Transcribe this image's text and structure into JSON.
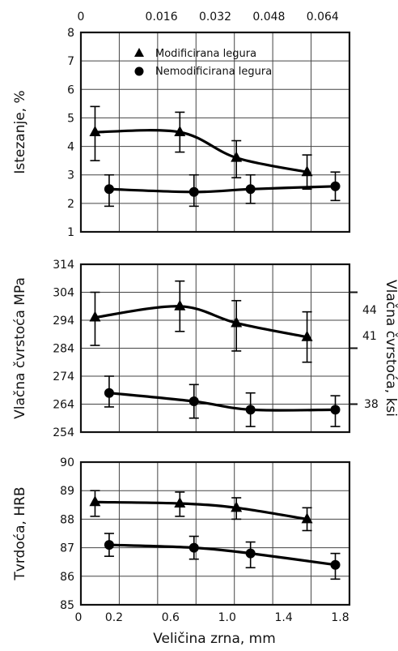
{
  "chart_data": [
    {
      "type": "line",
      "ylabel": "Istezanje, %",
      "top_axis_ticks": [
        "0",
        "0.016",
        "0.032",
        "0.048",
        "0.064"
      ],
      "y_ticks": [
        "1",
        "2",
        "3",
        "4",
        "5",
        "6",
        "7",
        "8"
      ],
      "ylim": [
        1,
        8
      ],
      "xlim": [
        0,
        1.9
      ],
      "grid": true,
      "legend_position": "top-right",
      "series": [
        {
          "name": "Modificirana legura",
          "marker": "triangle",
          "x": [
            0.1,
            0.7,
            1.1,
            1.6
          ],
          "y": [
            4.5,
            4.5,
            3.6,
            3.1
          ],
          "err_low": [
            3.5,
            3.8,
            2.9,
            2.5
          ],
          "err_high": [
            5.4,
            5.2,
            4.2,
            3.7
          ]
        },
        {
          "name": "Nemodificirana legura",
          "marker": "circle",
          "x": [
            0.2,
            0.8,
            1.2,
            1.8
          ],
          "y": [
            2.5,
            2.4,
            2.5,
            2.6
          ],
          "err_low": [
            1.9,
            1.9,
            2.0,
            2.1
          ],
          "err_high": [
            3.0,
            3.0,
            3.0,
            3.1
          ]
        }
      ]
    },
    {
      "type": "line",
      "ylabel": "Vlačna čvrstoća MPa",
      "ylabel_right": "Vlačna čvrstoća, ksi",
      "y_ticks": [
        "254",
        "264",
        "274",
        "284",
        "294",
        "304",
        "314"
      ],
      "y_ticks_right": [
        "38",
        "41",
        "44"
      ],
      "ylim": [
        254,
        314
      ],
      "xlim": [
        0,
        1.9
      ],
      "grid": true,
      "series": [
        {
          "name": "Modificirana legura",
          "marker": "triangle",
          "x": [
            0.1,
            0.7,
            1.1,
            1.6
          ],
          "y": [
            295,
            299,
            293,
            288
          ],
          "err_low": [
            285,
            290,
            283,
            279
          ],
          "err_high": [
            304,
            308,
            301,
            297
          ]
        },
        {
          "name": "Nemodificirana legura",
          "marker": "circle",
          "x": [
            0.2,
            0.8,
            1.2,
            1.8
          ],
          "y": [
            268,
            265,
            262,
            262
          ],
          "err_low": [
            263,
            259,
            256,
            256
          ],
          "err_high": [
            274,
            271,
            268,
            267
          ]
        }
      ]
    },
    {
      "type": "line",
      "ylabel": "Tvrdoća, HRB",
      "xlabel": "Veličina zrna, mm",
      "x_ticks": [
        "0",
        "0.2",
        "0.6",
        "1.0",
        "1.4",
        "1.8"
      ],
      "y_ticks": [
        "85",
        "86",
        "87",
        "88",
        "89",
        "90"
      ],
      "ylim": [
        85,
        90
      ],
      "xlim": [
        0,
        1.9
      ],
      "grid": true,
      "series": [
        {
          "name": "Modificirana legura",
          "marker": "triangle",
          "x": [
            0.1,
            0.7,
            1.1,
            1.6
          ],
          "y": [
            88.6,
            88.55,
            88.4,
            88.0
          ],
          "err_low": [
            88.1,
            88.1,
            88.0,
            87.6
          ],
          "err_high": [
            89.0,
            88.95,
            88.75,
            88.4
          ]
        },
        {
          "name": "Nemodificirana legura",
          "marker": "circle",
          "x": [
            0.2,
            0.8,
            1.2,
            1.8
          ],
          "y": [
            87.1,
            87.0,
            86.8,
            86.4
          ],
          "err_low": [
            86.7,
            86.6,
            86.3,
            85.9
          ],
          "err_high": [
            87.5,
            87.4,
            87.2,
            86.8
          ]
        }
      ]
    }
  ]
}
